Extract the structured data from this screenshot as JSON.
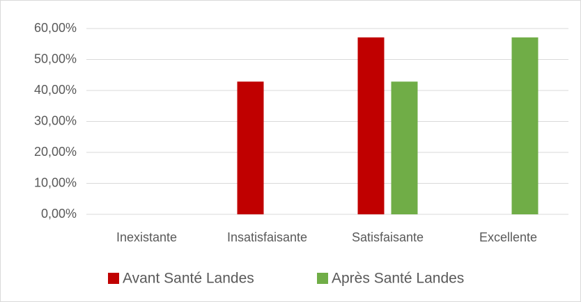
{
  "chart_data": {
    "type": "bar",
    "categories": [
      "Inexistante",
      "Insatisfaisante",
      "Satisfaisante",
      "Excellente"
    ],
    "series": [
      {
        "name": "Avant Santé Landes",
        "color": "#c00000",
        "values": [
          0,
          42.86,
          57.14,
          0
        ]
      },
      {
        "name": "Après Santé Landes",
        "color": "#70ad47",
        "values": [
          0,
          0,
          42.86,
          57.14
        ]
      }
    ],
    "ylim": [
      0,
      60
    ],
    "yticks": [
      {
        "value": 0,
        "label": "0,00%"
      },
      {
        "value": 10,
        "label": "10,00%"
      },
      {
        "value": 20,
        "label": "20,00%"
      },
      {
        "value": 30,
        "label": "30,00%"
      },
      {
        "value": 40,
        "label": "40,00%"
      },
      {
        "value": 50,
        "label": "50,00%"
      },
      {
        "value": 60,
        "label": "60,00%"
      }
    ],
    "grid": true,
    "legend": "bottom"
  }
}
